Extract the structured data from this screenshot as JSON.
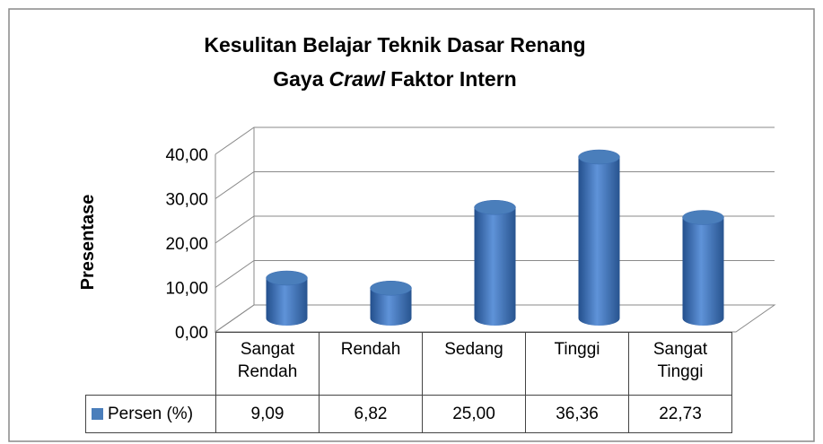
{
  "chart_data": {
    "type": "cylinder3d",
    "title": {
      "line1": "Kesulitan Belajar Teknik Dasar Renang",
      "line2": [
        "Gaya",
        "Crawl",
        "Faktor Intern"
      ]
    },
    "y_label": "Presentase",
    "categories": [
      "Sangat Rendah",
      "Rendah",
      "Sedang",
      "Tinggi",
      "Sangat Tinggi"
    ],
    "series": [
      {
        "name": "Persen (%)",
        "color": "#4a7ebb",
        "values": [
          9.09,
          6.82,
          25.0,
          36.36,
          22.73
        ],
        "value_labels": [
          "9,09",
          "6,82",
          "25,00",
          "36,36",
          "22,73"
        ]
      }
    ],
    "ylim": [
      0,
      40
    ],
    "yticks": [
      {
        "value": 0,
        "label": "0,00"
      },
      {
        "value": 10,
        "label": "10,00"
      },
      {
        "value": 20,
        "label": "20,00"
      },
      {
        "value": 30,
        "label": "30,00"
      },
      {
        "value": 40,
        "label": "40,00"
      }
    ],
    "grid": true,
    "data_table": true
  }
}
